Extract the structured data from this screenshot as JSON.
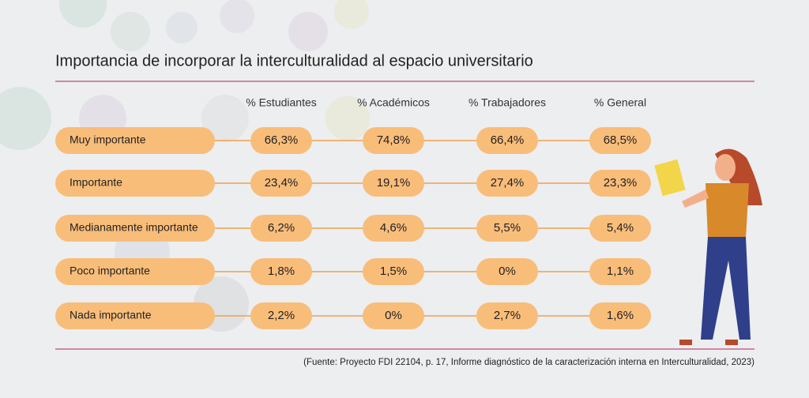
{
  "title": "Importancia de incorporar la interculturalidad al espacio universitario",
  "table": {
    "columns": [
      "% Estudiantes",
      "% Académicos",
      "% Trabajadores",
      "% General"
    ],
    "rows": [
      {
        "label": "Muy importante",
        "cells": [
          "66,3%",
          "74,8%",
          "66,4%",
          "68,5%"
        ]
      },
      {
        "label": "Importante",
        "cells": [
          "23,4%",
          "19,1%",
          "27,4%",
          "23,3%"
        ]
      },
      {
        "label": "Medianamente importante",
        "cells": [
          "6,2%",
          "4,6%",
          "5,5%",
          "5,4%"
        ]
      },
      {
        "label": "Poco importante",
        "cells": [
          "1,8%",
          "1,5%",
          "0%",
          "1,1%"
        ]
      },
      {
        "label": "Nada importante",
        "cells": [
          "2,2%",
          "0%",
          "2,7%",
          "1,6%"
        ]
      }
    ]
  },
  "source": "(Fuente: Proyecto FDI 22104, p. 17, Informe diagnóstico de la caracterización interna en Interculturalidad, 2023)"
}
